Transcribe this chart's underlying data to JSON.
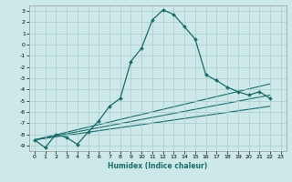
{
  "xlabel": "Humidex (Indice chaleur)",
  "bg_color": "#cce8e8",
  "grid_color": "#aacccc",
  "line_color": "#1a6b6b",
  "xlim": [
    -0.5,
    23.5
  ],
  "ylim": [
    -9.5,
    3.5
  ],
  "xticks": [
    0,
    1,
    2,
    3,
    4,
    5,
    6,
    7,
    8,
    9,
    10,
    11,
    12,
    13,
    14,
    15,
    16,
    17,
    18,
    19,
    20,
    21,
    22,
    23
  ],
  "yticks": [
    3,
    2,
    1,
    0,
    -1,
    -2,
    -3,
    -4,
    -5,
    -6,
    -7,
    -8,
    -9
  ],
  "main_series": {
    "x": [
      0,
      1,
      2,
      3,
      4,
      5,
      6,
      7,
      8,
      9,
      10,
      11,
      12,
      13,
      14,
      15,
      16,
      17,
      18,
      19,
      20,
      21,
      22
    ],
    "y": [
      -8.5,
      -9.2,
      -8.0,
      -8.3,
      -8.9,
      -7.8,
      -6.8,
      -5.5,
      -4.8,
      -1.5,
      -0.3,
      2.2,
      3.1,
      2.7,
      1.6,
      0.5,
      -2.7,
      -3.2,
      -3.8,
      -4.2,
      -4.5,
      -4.2,
      -4.8
    ]
  },
  "trend_lines": [
    {
      "x": [
        0,
        22
      ],
      "y": [
        -8.5,
        -4.5
      ]
    },
    {
      "x": [
        0,
        22
      ],
      "y": [
        -8.5,
        -5.5
      ]
    },
    {
      "x": [
        0,
        22
      ],
      "y": [
        -8.5,
        -3.5
      ]
    }
  ]
}
